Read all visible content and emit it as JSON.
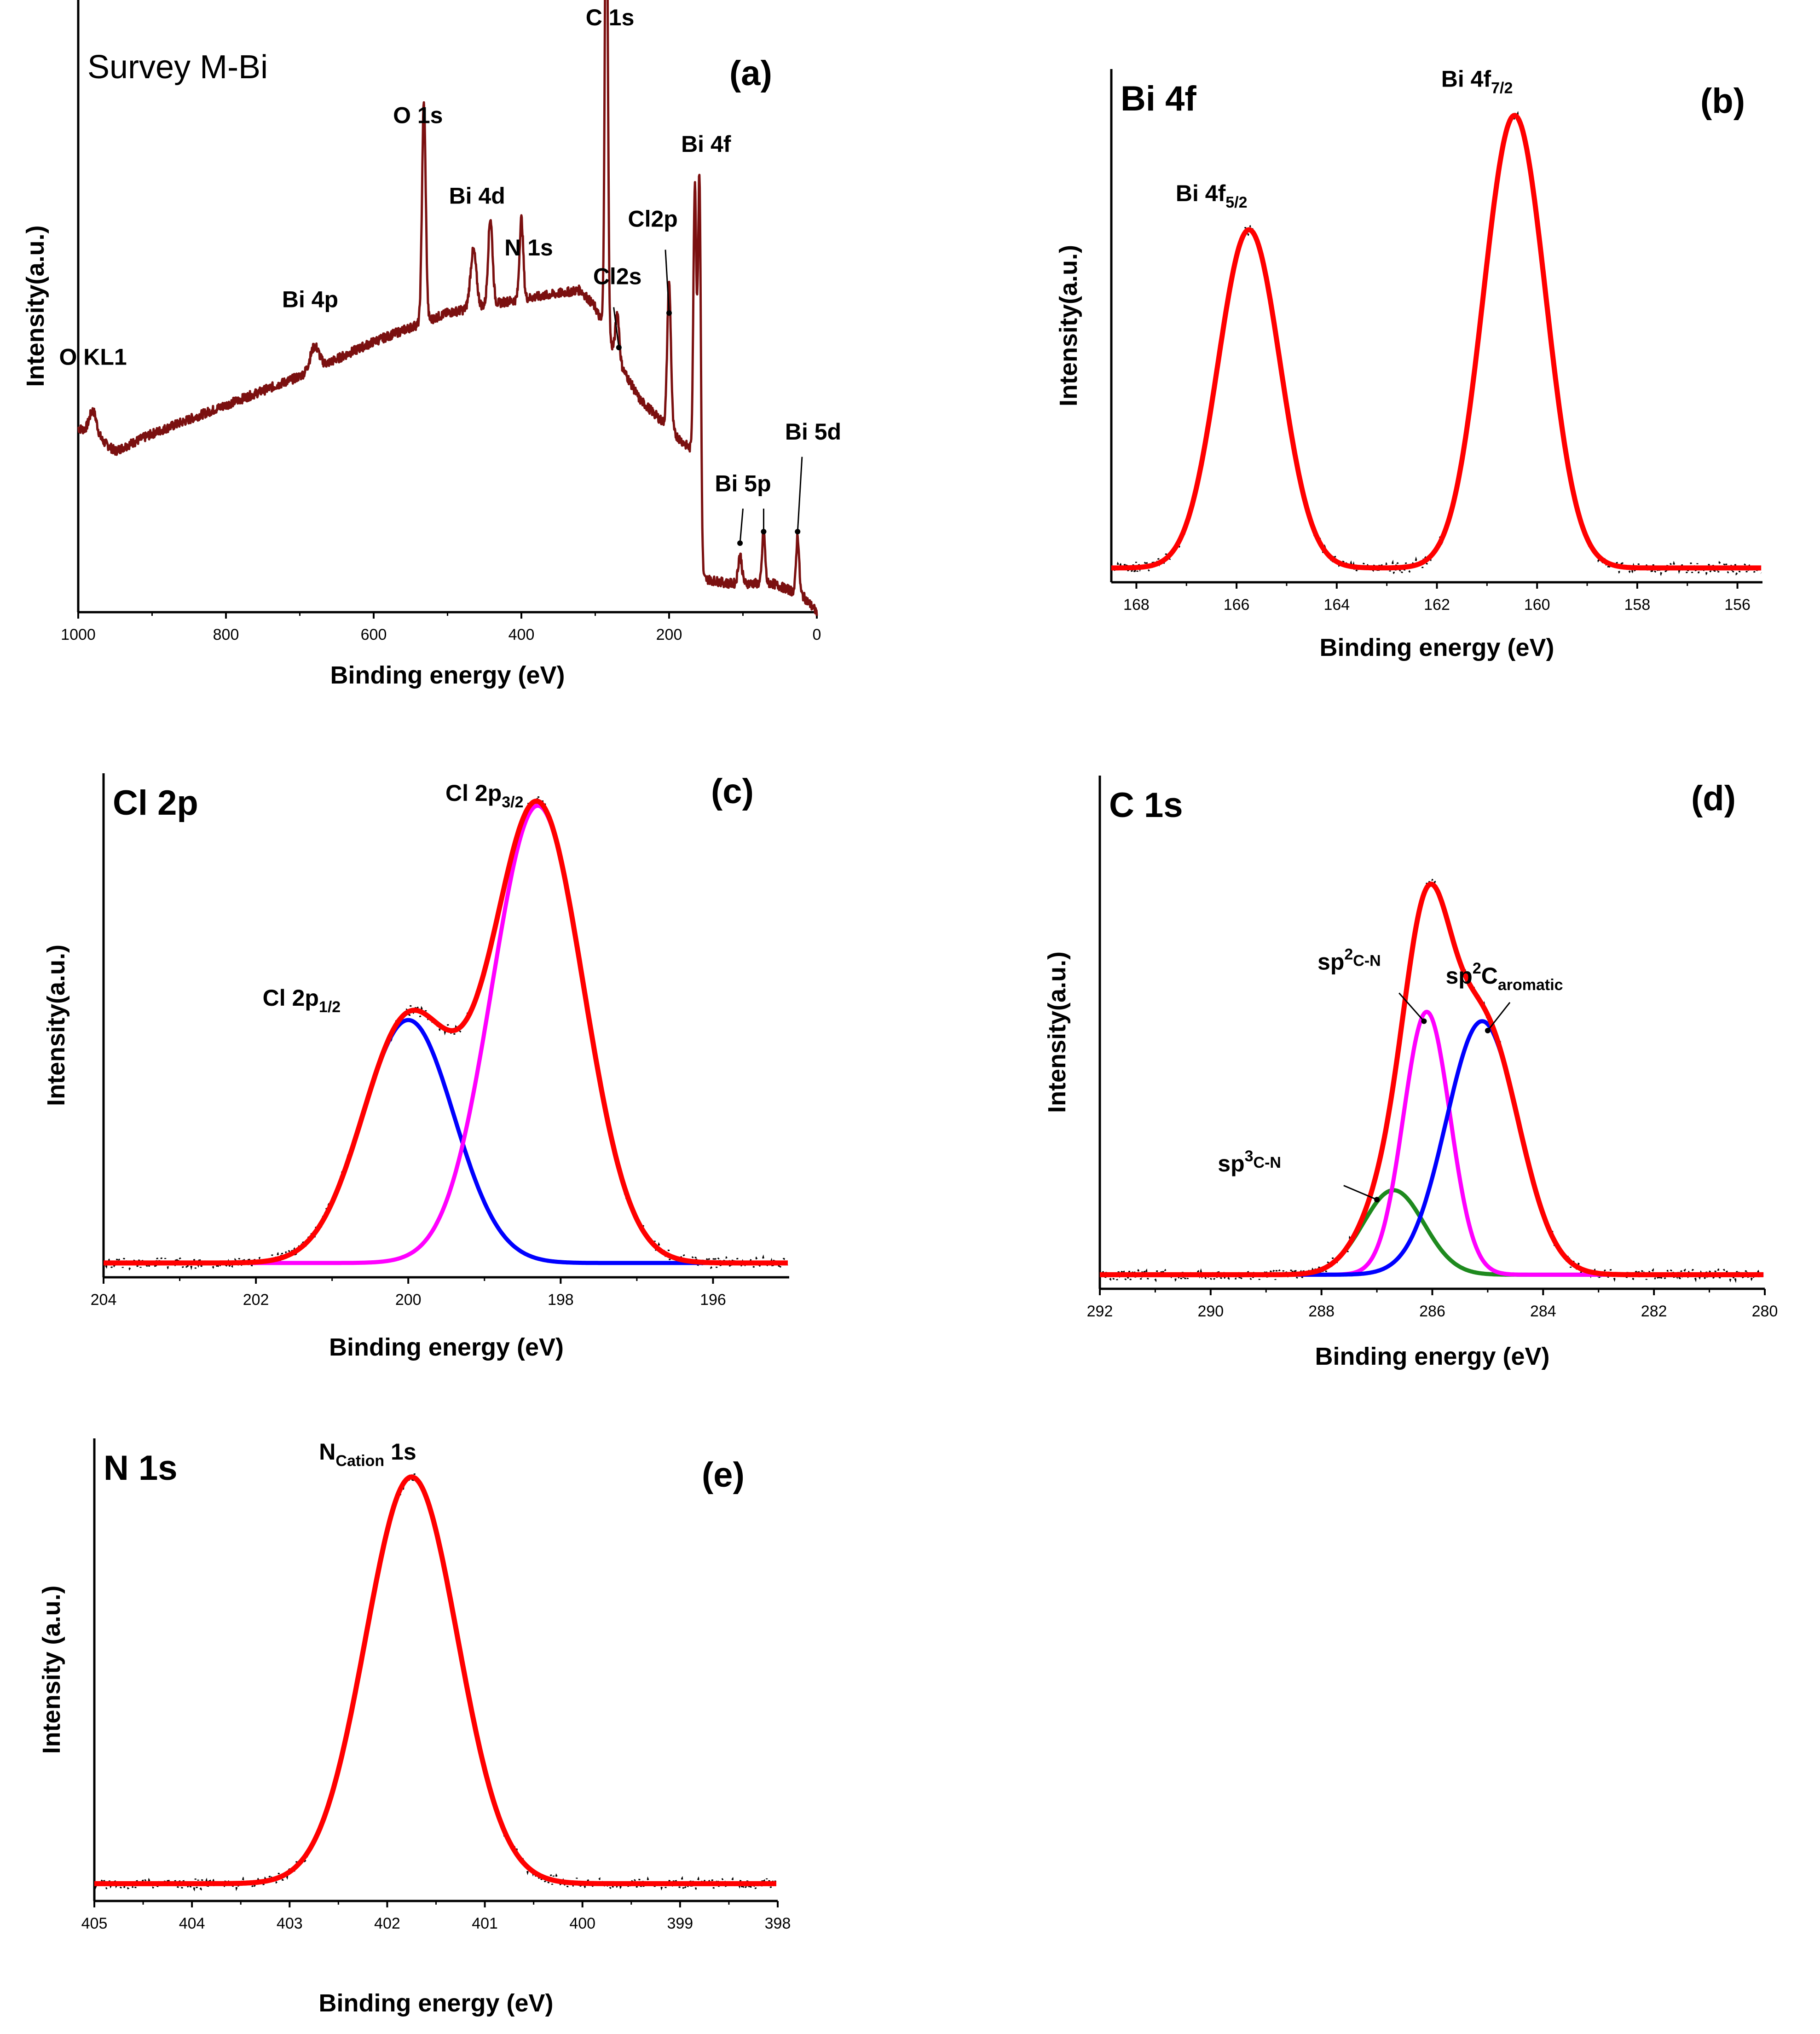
{
  "colors": {
    "survey": "#7b1010",
    "envelope": "#ff0000",
    "blue": "#0000ff",
    "magenta": "#ff00ff",
    "green": "#1e8a1e",
    "raw": "#000000"
  },
  "chart_data": [
    {
      "id": "a",
      "type": "line",
      "title": "Survey M-Bi",
      "tag": "(a)",
      "xlabel": "Binding energy (eV)",
      "ylabel": "Intensity(a.u.)",
      "xlim": [
        1000,
        0
      ],
      "ylim": [
        0,
        100
      ],
      "xticks": [
        "1000",
        "800",
        "600",
        "400",
        "200",
        "0"
      ],
      "xtick_values": [
        1000,
        800,
        600,
        400,
        200,
        0
      ],
      "baseline": [
        [
          1000,
          32
        ],
        [
          980,
          31
        ],
        [
          950,
          28
        ],
        [
          900,
          31
        ],
        [
          800,
          36
        ],
        [
          700,
          41
        ],
        [
          600,
          47
        ],
        [
          500,
          52
        ],
        [
          420,
          54
        ],
        [
          320,
          56
        ],
        [
          300,
          53
        ],
        [
          270,
          44
        ],
        [
          240,
          37
        ],
        [
          200,
          32
        ],
        [
          185,
          30
        ],
        [
          168,
          28
        ],
        [
          162,
          16
        ],
        [
          160,
          6
        ],
        [
          120,
          5
        ],
        [
          60,
          5
        ],
        [
          20,
          3
        ],
        [
          0,
          0
        ]
      ],
      "peaks": [
        {
          "center": 980,
          "height": 4,
          "width": 5
        },
        {
          "center": 680,
          "height": 4,
          "width": 6
        },
        {
          "center": 532,
          "height": 38,
          "width": 2.5
        },
        {
          "center": 465,
          "height": 10,
          "width": 4
        },
        {
          "center": 442,
          "height": 15,
          "width": 3
        },
        {
          "center": 400,
          "height": 14,
          "width": 2.5
        },
        {
          "center": 285,
          "height": 88,
          "width": 2
        },
        {
          "center": 270,
          "height": 8,
          "width": 2.5
        },
        {
          "center": 200,
          "height": 25,
          "width": 2.5
        },
        {
          "center": 165,
          "height": 52,
          "width": 2
        },
        {
          "center": 159,
          "height": 70,
          "width": 2
        },
        {
          "center": 104,
          "height": 5,
          "width": 2.5
        },
        {
          "center": 72,
          "height": 9,
          "width": 2
        },
        {
          "center": 26,
          "height": 10,
          "width": 2
        }
      ],
      "annotations": [
        {
          "text": "O KL1",
          "x": 980,
          "y": 43
        },
        {
          "text": "Bi 4p",
          "x": 686,
          "y": 53
        },
        {
          "text": "O 1s",
          "x": 540,
          "y": 85
        },
        {
          "text": "Bi 4d",
          "x": 460,
          "y": 71
        },
        {
          "text": "N 1s",
          "x": 390,
          "y": 62
        },
        {
          "text": "C 1s",
          "x": 280,
          "y": 102
        },
        {
          "text": "Cl2p",
          "x": 222,
          "y": 67
        },
        {
          "text": "Cl2s",
          "x": 270,
          "y": 57
        },
        {
          "text": "Bi 4f",
          "x": 150,
          "y": 80
        },
        {
          "text": "Bi 5d",
          "x": 5,
          "y": 30
        },
        {
          "text": "Bi 5p",
          "x": 100,
          "y": 21
        }
      ]
    },
    {
      "id": "b",
      "type": "line",
      "title": "Bi 4f",
      "tag": "(b)",
      "xlabel": "Binding energy (eV)",
      "ylabel": "Intensity(a.u.)",
      "xlim": [
        168.5,
        155.5
      ],
      "ylim": [
        0,
        100
      ],
      "xticks": [
        "168",
        "166",
        "164",
        "162",
        "160",
        "158",
        "156"
      ],
      "xtick_values": [
        168,
        166,
        164,
        162,
        160,
        158,
        156
      ],
      "baseline": 3,
      "components": [
        {
          "name": "envelope",
          "color_key": "envelope",
          "peaks": [
            {
              "center": 165.75,
              "height": 71,
              "width": 0.62
            },
            {
              "center": 160.45,
              "height": 95,
              "width": 0.62
            }
          ]
        }
      ],
      "annotations": [
        {
          "text": "Bi 4f",
          "sub": "5/2",
          "x": 166.5,
          "y": 80
        },
        {
          "text": "Bi 4f",
          "sub": "7/2",
          "x": 161.2,
          "y": 104
        }
      ]
    },
    {
      "id": "c",
      "type": "line",
      "title": "Cl 2p",
      "tag": "(c)",
      "xlabel": "Binding energy (eV)",
      "ylabel": "Intensity(a.u.)",
      "xlim": [
        204,
        195
      ],
      "ylim": [
        0,
        100
      ],
      "xticks": [
        "204",
        "202",
        "200",
        "198",
        "196"
      ],
      "xtick_values": [
        204,
        202,
        200,
        198,
        196
      ],
      "baseline": 3,
      "components": [
        {
          "name": "Cl 2p1/2",
          "color_key": "blue",
          "peaks": [
            {
              "center": 200.0,
              "height": 51,
              "width": 0.6
            }
          ]
        },
        {
          "name": "Cl 2p3/2",
          "color_key": "magenta",
          "peaks": [
            {
              "center": 198.3,
              "height": 96,
              "width": 0.6
            }
          ]
        },
        {
          "name": "envelope",
          "color_key": "envelope",
          "peaks": [
            {
              "center": 200.0,
              "height": 51,
              "width": 0.6
            },
            {
              "center": 198.3,
              "height": 96,
              "width": 0.6
            }
          ]
        }
      ],
      "annotations": [
        {
          "text": "Cl 2p",
          "sub": "1/2",
          "x": 201.4,
          "y": 57
        },
        {
          "text": "Cl 2p",
          "sub": "3/2",
          "x": 199.0,
          "y": 100
        }
      ]
    },
    {
      "id": "d",
      "type": "line",
      "title": "C 1s",
      "tag": "(d)",
      "xlabel": "Binding energy (eV)",
      "ylabel": "Intensity(a.u.)",
      "xlim": [
        292,
        280
      ],
      "ylim": [
        0,
        100
      ],
      "xticks": [
        "292",
        "290",
        "288",
        "286",
        "284",
        "282",
        "280"
      ],
      "xtick_values": [
        292,
        290,
        288,
        286,
        284,
        282,
        280
      ],
      "baseline": 3,
      "components": [
        {
          "name": "sp3 C-N",
          "color_key": "green",
          "peaks": [
            {
              "center": 286.7,
              "height": 18,
              "width": 0.55
            }
          ]
        },
        {
          "name": "sp2 C-N",
          "color_key": "magenta",
          "peaks": [
            {
              "center": 286.1,
              "height": 56,
              "width": 0.42
            }
          ]
        },
        {
          "name": "sp2 C aromatic",
          "color_key": "blue",
          "peaks": [
            {
              "center": 285.1,
              "height": 54,
              "width": 0.65
            }
          ]
        },
        {
          "name": "envelope",
          "color_key": "envelope",
          "peaks": [
            {
              "center": 286.7,
              "height": 18,
              "width": 0.55
            },
            {
              "center": 286.1,
              "height": 56,
              "width": 0.42
            },
            {
              "center": 285.1,
              "height": 54,
              "width": 0.65
            }
          ]
        }
      ],
      "annotations": [
        {
          "text": "sp",
          "sup": "2",
          "sub": "C-N",
          "x": 287.5,
          "y": 68
        },
        {
          "text": "sp",
          "sup": "2",
          "text2": "C",
          "sub": "aromatic",
          "x": 284.7,
          "y": 65
        },
        {
          "text": "sp",
          "sup": "3",
          "sub": "C-N",
          "x": 289.3,
          "y": 25
        }
      ]
    },
    {
      "id": "e",
      "type": "line",
      "title": "N 1s",
      "tag": "(e)",
      "xlabel": "Binding energy (eV)",
      "ylabel": "Intensity (a.u.)",
      "xlim": [
        405,
        398
      ],
      "ylim": [
        0,
        100
      ],
      "xticks": [
        "405",
        "404",
        "403",
        "402",
        "401",
        "400",
        "399",
        "398"
      ],
      "xtick_values": [
        405,
        404,
        403,
        402,
        401,
        400,
        399,
        398
      ],
      "baseline": 4,
      "components": [
        {
          "name": "envelope",
          "color_key": "envelope",
          "peaks": [
            {
              "center": 401.75,
              "height": 94,
              "width": 0.47
            }
          ]
        }
      ],
      "annotations": [
        {
          "text": "N",
          "sub": "Cation",
          "text2": " 1s",
          "x": 402.2,
          "y": 102
        }
      ]
    }
  ]
}
